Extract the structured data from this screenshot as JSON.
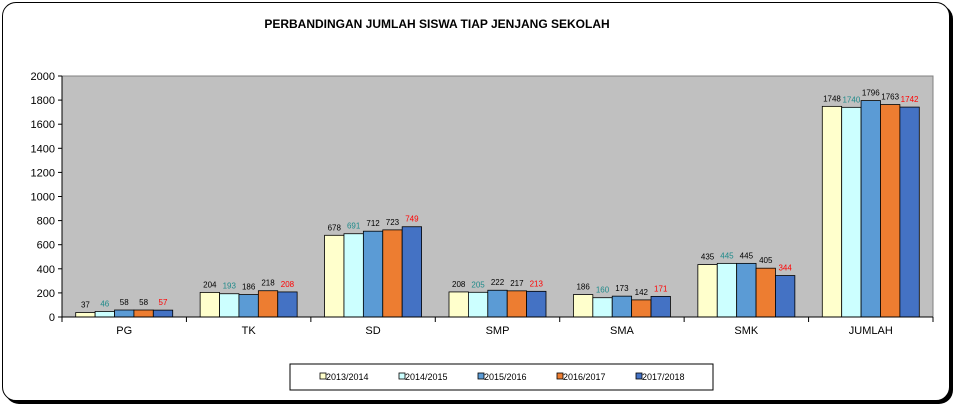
{
  "chart_data": {
    "type": "bar",
    "title": "PERBANDINGAN  JUMLAH  SISWA TIAP  JENJANG  SEKOLAH",
    "xlabel": "",
    "ylabel": "",
    "ylim": [
      0,
      2000
    ],
    "yticks": [
      "0",
      "200",
      "400",
      "600",
      "800",
      "1000",
      "1200",
      "1400",
      "1600",
      "1800",
      "2000"
    ],
    "grid": false,
    "legend": "bottom",
    "categories": [
      "PG",
      "TK",
      "SD",
      "SMP",
      "SMA",
      "SMK",
      "JUMLAH"
    ],
    "series": [
      {
        "name": "2013/2014",
        "color": "#ffffcc",
        "label_color": "#000000",
        "values": [
          37,
          204,
          678,
          208,
          186,
          435,
          1748
        ]
      },
      {
        "name": "2014/2015",
        "color": "#ccffff",
        "label_color": "#1e8a8a",
        "values": [
          46,
          193,
          691,
          205,
          160,
          445,
          1740
        ]
      },
      {
        "name": "2015/2016",
        "color": "#5b9bd5",
        "label_color": "#000000",
        "values": [
          58,
          186,
          712,
          222,
          173,
          445,
          1796
        ]
      },
      {
        "name": "2016/2017",
        "color": "#ed7d31",
        "label_color": "#000000",
        "values": [
          58,
          218,
          723,
          217,
          142,
          405,
          1763
        ]
      },
      {
        "name": "2017/2018",
        "color": "#4472c4",
        "label_color": "#ff0000",
        "values": [
          57,
          208,
          749,
          213,
          171,
          344,
          1742
        ]
      }
    ],
    "colors": {
      "plot_background": "#c0c0c0",
      "bar_outline": "#000000"
    }
  }
}
